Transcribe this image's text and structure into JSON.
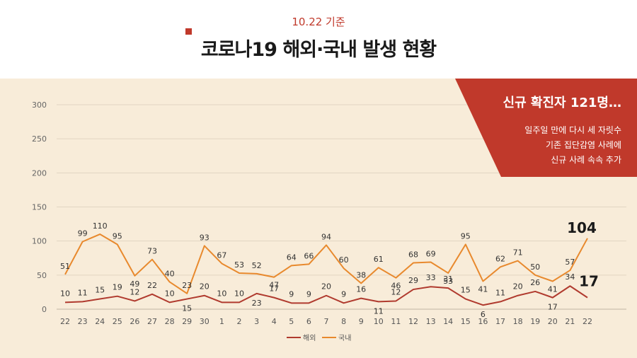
{
  "header": {
    "date": "10.22 기준",
    "title": "코로나19 해외·국내 발생 현황"
  },
  "callout": {
    "title": "신규 확진자 121명…",
    "lines": [
      "일주일 만에 다시 세 자릿수",
      "기존 집단감염 사례에",
      "신규 사례 속속 추가"
    ]
  },
  "colors": {
    "overseas": "#b03a2e",
    "domestic": "#e8892d",
    "accent": "#c0392b",
    "background": "#f8ecd9",
    "grid": "#e2d5c2"
  },
  "chart_data": {
    "type": "line",
    "categories": [
      "22",
      "23",
      "24",
      "25",
      "26",
      "27",
      "28",
      "29",
      "30",
      "1",
      "2",
      "3",
      "4",
      "5",
      "6",
      "7",
      "8",
      "9",
      "10",
      "11",
      "12",
      "13",
      "14",
      "15",
      "16",
      "17",
      "18",
      "19",
      "20",
      "21",
      "22"
    ],
    "series": [
      {
        "name": "해외",
        "values": [
          10,
          11,
          15,
          19,
          12,
          22,
          10,
          15,
          20,
          10,
          10,
          23,
          17,
          9,
          9,
          20,
          9,
          16,
          11,
          12,
          29,
          33,
          31,
          15,
          6,
          11,
          20,
          26,
          17,
          34,
          17
        ]
      },
      {
        "name": "국내",
        "values": [
          51,
          99,
          110,
          95,
          49,
          73,
          40,
          23,
          93,
          67,
          53,
          52,
          47,
          64,
          66,
          94,
          60,
          38,
          61,
          46,
          68,
          69,
          53,
          95,
          41,
          62,
          71,
          50,
          41,
          57,
          104
        ]
      }
    ],
    "ylim": [
      0,
      300
    ],
    "yticks": [
      0,
      50,
      100,
      150,
      200,
      250,
      300
    ],
    "grid": true,
    "legend_position": "bottom"
  }
}
